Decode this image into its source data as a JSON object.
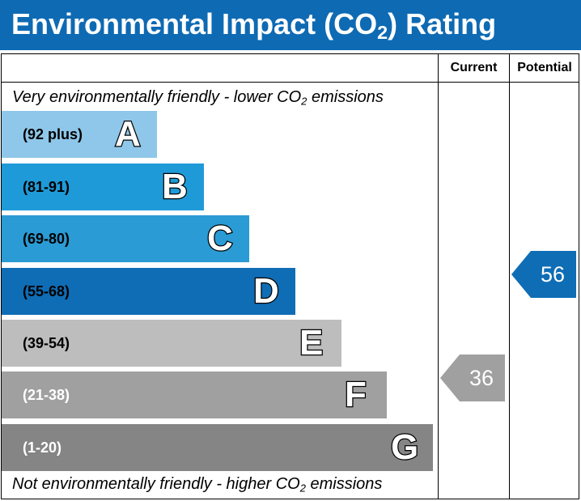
{
  "title_main": "Environmental Impact (CO",
  "title_sub": "2",
  "title_end": ") Rating",
  "columns": {
    "current": "Current",
    "potential": "Potential"
  },
  "top_caption": {
    "before": "Very environmentally friendly - lower CO",
    "sub": "2",
    "after": " emissions"
  },
  "bottom_caption": {
    "before": "Not environmentally friendly - higher CO",
    "sub": "2",
    "after": " emissions"
  },
  "chart_data": {
    "type": "bar",
    "categories": [
      "A",
      "B",
      "C",
      "D",
      "E",
      "F",
      "G"
    ],
    "bands": [
      {
        "letter": "A",
        "range": "(92 plus)",
        "color": "#8ec7e9",
        "text_color": "#000000"
      },
      {
        "letter": "B",
        "range": "(81-91)",
        "color": "#1f9ad8",
        "text_color": "#000000"
      },
      {
        "letter": "C",
        "range": "(69-80)",
        "color": "#2a9bd4",
        "text_color": "#000000"
      },
      {
        "letter": "D",
        "range": "(55-68)",
        "color": "#0f6db5",
        "text_color": "#000000"
      },
      {
        "letter": "E",
        "range": "(39-54)",
        "color": "#bebdbd",
        "text_color": "#000000"
      },
      {
        "letter": "F",
        "range": "(21-38)",
        "color": "#a0a0a0",
        "text_color": "#ffffff"
      },
      {
        "letter": "G",
        "range": "(1-20)",
        "color": "#858585",
        "text_color": "#ffffff"
      }
    ],
    "current": {
      "value": 36,
      "band": "F",
      "color": "#a0a0a0"
    },
    "potential": {
      "value": 56,
      "band": "D",
      "color": "#0f6db5"
    }
  }
}
